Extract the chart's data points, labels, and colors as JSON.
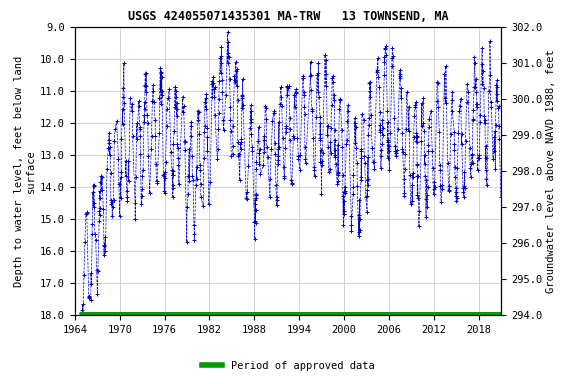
{
  "title": "USGS 424055071435301 MA-TRW   13 TOWNSEND, MA",
  "ylabel_left": "Depth to water level, feet below land\nsurface",
  "ylabel_right": "Groundwater level above NAVD 1988, feet",
  "ylim_left": [
    18.0,
    9.0
  ],
  "ylim_right": [
    294.0,
    302.0
  ],
  "xlim": [
    1964,
    2021
  ],
  "yticks_left": [
    9.0,
    10.0,
    11.0,
    12.0,
    13.0,
    14.0,
    15.0,
    16.0,
    17.0,
    18.0
  ],
  "yticks_right": [
    294.0,
    295.0,
    296.0,
    297.0,
    298.0,
    299.0,
    300.0,
    301.0,
    302.0
  ],
  "xticks": [
    1964,
    1970,
    1976,
    1982,
    1988,
    1994,
    2000,
    2006,
    2012,
    2018
  ],
  "data_color": "#0000CC",
  "approved_color": "#009900",
  "background_color": "#ffffff",
  "grid_color": "#cccccc",
  "title_fontsize": 8.5,
  "axis_label_fontsize": 7.5,
  "tick_fontsize": 7.5,
  "legend_label": "Period of approved data",
  "years_start": 1965.0,
  "years_end": 2021.0
}
